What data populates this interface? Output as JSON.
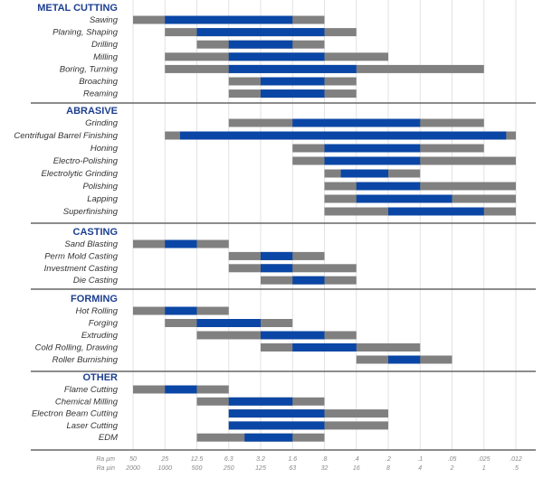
{
  "chart_data": {
    "type": "range-bar",
    "title": "",
    "axis": {
      "scale": "log",
      "direction": "decreasing",
      "ra_um_label": "Ra µm",
      "ra_uin_label": "Ra µin",
      "ra_um_ticks": [
        "50",
        "25",
        "12.5",
        "6.3",
        "3.2",
        "1.6",
        ".8",
        ".4",
        ".2",
        ".1",
        ".05",
        ".025",
        ".012"
      ],
      "ra_uin_ticks": [
        "2000",
        "1000",
        "500",
        "250",
        "125",
        "63",
        "32",
        "16",
        "8",
        "4",
        "2",
        "1",
        ".5"
      ],
      "grid": true
    },
    "colors": {
      "range": "#808080",
      "typical": "#0a46a5",
      "header": "#1d3f8f"
    },
    "sections": [
      {
        "name": "METAL CUTTING",
        "processes": [
          {
            "label": "Sawing",
            "range": [
              50,
              0.8
            ],
            "typical": [
              25,
              1.6
            ]
          },
          {
            "label": "Planing, Shaping",
            "range": [
              25,
              0.4
            ],
            "typical": [
              12.5,
              0.8
            ]
          },
          {
            "label": "Drilling",
            "range": [
              12.5,
              0.8
            ],
            "typical": [
              6.3,
              1.6
            ]
          },
          {
            "label": "Milling",
            "range": [
              25,
              0.2
            ],
            "typical": [
              6.3,
              0.8
            ]
          },
          {
            "label": "Boring, Turning",
            "range": [
              25,
              0.025
            ],
            "typical": [
              6.3,
              0.4
            ]
          },
          {
            "label": "Broaching",
            "range": [
              6.3,
              0.4
            ],
            "typical": [
              3.2,
              0.8
            ]
          },
          {
            "label": "Reaming",
            "range": [
              6.3,
              0.4
            ],
            "typical": [
              3.2,
              0.8
            ]
          }
        ]
      },
      {
        "name": "ABRASIVE",
        "processes": [
          {
            "label": "Grinding",
            "range": [
              6.3,
              0.025
            ],
            "typical": [
              1.6,
              0.1
            ]
          },
          {
            "label": "Centrifugal Barrel Finishing",
            "range": [
              25,
              0.012
            ],
            "typical": [
              18,
              0.015
            ]
          },
          {
            "label": "Honing",
            "range": [
              1.6,
              0.025
            ],
            "typical": [
              0.8,
              0.1
            ]
          },
          {
            "label": "Electro-Polishing",
            "range": [
              1.6,
              0.012
            ],
            "typical": [
              0.8,
              0.1
            ]
          },
          {
            "label": "Electrolytic Grinding",
            "range": [
              0.8,
              0.1
            ],
            "typical": [
              0.56,
              0.2
            ]
          },
          {
            "label": "Polishing",
            "range": [
              0.8,
              0.012
            ],
            "typical": [
              0.4,
              0.1
            ]
          },
          {
            "label": "Lapping",
            "range": [
              0.8,
              0.012
            ],
            "typical": [
              0.4,
              0.05
            ]
          },
          {
            "label": "Superfinishing",
            "range": [
              0.8,
              0.012
            ],
            "typical": [
              0.2,
              0.025
            ]
          }
        ]
      },
      {
        "name": "CASTING",
        "processes": [
          {
            "label": "Sand Blasting",
            "range": [
              50,
              6.3
            ],
            "typical": [
              25,
              12.5
            ]
          },
          {
            "label": "Perm Mold Casting",
            "range": [
              6.3,
              0.8
            ],
            "typical": [
              3.2,
              1.6
            ]
          },
          {
            "label": "Investment Casting",
            "range": [
              6.3,
              0.4
            ],
            "typical": [
              3.2,
              1.6
            ]
          },
          {
            "label": "Die Casting",
            "range": [
              3.2,
              0.4
            ],
            "typical": [
              1.6,
              0.8
            ]
          }
        ]
      },
      {
        "name": "FORMING",
        "processes": [
          {
            "label": "Hot Rolling",
            "range": [
              50,
              6.3
            ],
            "typical": [
              25,
              12.5
            ]
          },
          {
            "label": "Forging",
            "range": [
              25,
              1.6
            ],
            "typical": [
              12.5,
              3.2
            ]
          },
          {
            "label": "Extruding",
            "range": [
              12.5,
              0.4
            ],
            "typical": [
              3.2,
              0.8
            ]
          },
          {
            "label": "Cold Rolling, Drawing",
            "range": [
              3.2,
              0.1
            ],
            "typical": [
              1.6,
              0.4
            ]
          },
          {
            "label": "Roller Burnishing",
            "range": [
              0.4,
              0.05
            ],
            "typical": [
              0.2,
              0.1
            ]
          }
        ]
      },
      {
        "name": "OTHER",
        "processes": [
          {
            "label": "Flame Cutting",
            "range": [
              50,
              6.3
            ],
            "typical": [
              25,
              12.5
            ]
          },
          {
            "label": "Chemical Milling",
            "range": [
              12.5,
              0.8
            ],
            "typical": [
              6.3,
              1.6
            ]
          },
          {
            "label": "Electron Beam Cutting",
            "range": [
              6.3,
              0.2
            ],
            "typical": [
              6.3,
              0.8
            ]
          },
          {
            "label": "Laser Cutting",
            "range": [
              6.3,
              0.2
            ],
            "typical": [
              6.3,
              0.8
            ]
          },
          {
            "label": "EDM",
            "range": [
              12.5,
              0.8
            ],
            "typical": [
              4.5,
              1.6
            ]
          }
        ]
      }
    ]
  }
}
